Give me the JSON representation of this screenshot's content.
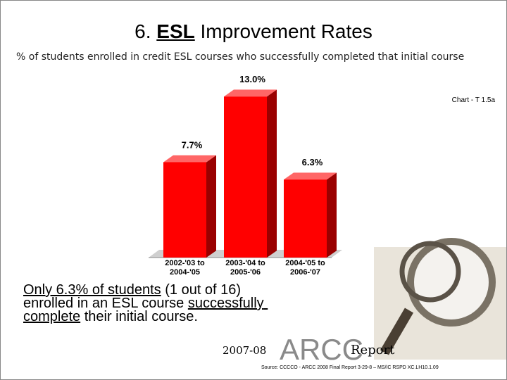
{
  "title": [
    {
      "text": "6. ",
      "underline": false
    },
    {
      "text": "ESL",
      "underline": true
    },
    {
      "text": " Improvement Rates",
      "underline": false
    }
  ],
  "subtitle": "% of students enrolled in credit ESL courses who successfully completed that initial course",
  "chart_data": {
    "type": "bar",
    "note": "Chart - T 1.5a",
    "categories": [
      "2002-'03 to 2004-'05",
      "2003-'04 to 2005-'06",
      "2004-'05 to 2006-'07"
    ],
    "values": [
      7.7,
      13.0,
      6.3
    ],
    "value_labels": [
      "7.7%",
      "13.0%",
      "6.3%"
    ],
    "color": "#ff0000"
  },
  "body": [
    {
      "text": "Only 6.3% of students",
      "underline": true
    },
    {
      "text": " (1 out of 16) enrolled in an ESL course ",
      "underline": false
    },
    {
      "text": "successfully complete",
      "underline": true
    },
    {
      "text": " their initial course.",
      "underline": false
    }
  ],
  "footer": {
    "year": "2007-08",
    "brand": "ARCC",
    "report": "Report"
  },
  "source": "Source: CCCCO - ARCC 2008 Final Report 3-29-8 – MS/IC RSPD XC.LH10.1.09"
}
